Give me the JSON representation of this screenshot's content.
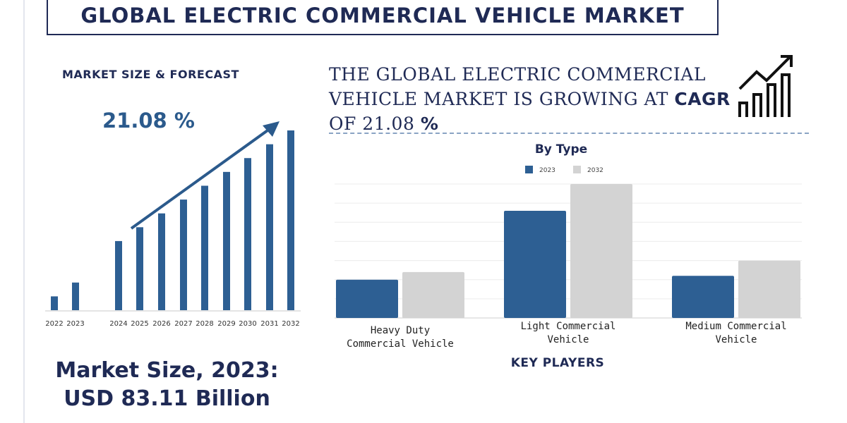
{
  "header": {
    "title": "GLOBAL ELECTRIC COMMERCIAL VEHICLE MARKET"
  },
  "left_panel": {
    "section_title": "MARKET SIZE & FORECAST",
    "cagr_value": "21.08 %",
    "market_size_line1": "Market Size, 2023:",
    "market_size_line2": "USD 83.11 Billion"
  },
  "headline": {
    "line1": "THE GLOBAL  ELECTRIC COMMERCIAL",
    "line2_prefix": "VEHICLE MARKET IS GROWING AT ",
    "line2_bold": "CAGR",
    "line3_prefix": "OF  21.08 ",
    "line3_bold": "%"
  },
  "key_players": "KEY PLAYERS",
  "icons": {
    "growth": "growth-chart-icon"
  },
  "colors": {
    "navy": "#1f2a55",
    "bar_blue": "#2d5f93",
    "bar_gray": "#d3d3d3",
    "arrow": "#2b5a8c"
  },
  "chart_data": [
    {
      "type": "bar",
      "title": "Market Size & Forecast",
      "categories": [
        "2022",
        "2023",
        "2024",
        "2025",
        "2026",
        "2027",
        "2028",
        "2029",
        "2030",
        "2031",
        "2032"
      ],
      "values": [
        1,
        2,
        5,
        6,
        7,
        8,
        9,
        10,
        11,
        12,
        13
      ],
      "xlabel": "",
      "ylabel": "",
      "ylim": [
        0,
        13
      ],
      "annotation": "21.08 %"
    },
    {
      "type": "bar",
      "title": "By Type",
      "categories": [
        "Heavy Duty Commercial Vehicle",
        "Light Commercial Vehicle",
        "Medium Commercial Vehicle"
      ],
      "category_lines": [
        [
          "Heavy Duty",
          "Commercial Vehicle"
        ],
        [
          "Light Commercial",
          "Vehicle"
        ],
        [
          "Medium Commercial",
          "Vehicle"
        ]
      ],
      "series": [
        {
          "name": "2023",
          "values": [
            2,
            5.6,
            2.2
          ],
          "color": "#2d5f93"
        },
        {
          "name": "2032",
          "values": [
            2.4,
            7,
            3
          ],
          "color": "#d3d3d3"
        }
      ],
      "ylim": [
        0,
        7
      ],
      "legend": "top-center",
      "grid": true
    }
  ]
}
